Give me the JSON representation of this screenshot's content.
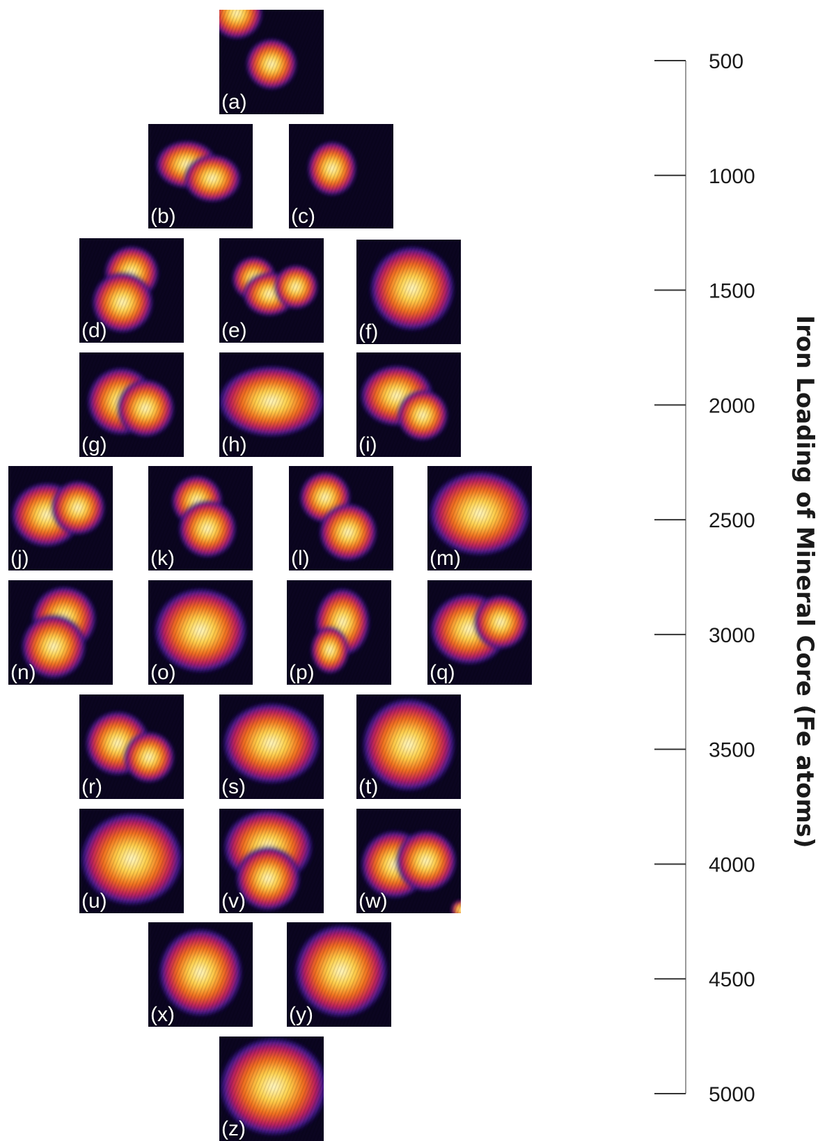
{
  "panels": [
    {
      "label": "(a)"
    },
    {
      "label": "(b)"
    },
    {
      "label": "(c)"
    },
    {
      "label": "(d)"
    },
    {
      "label": "(e)"
    },
    {
      "label": "(f)"
    },
    {
      "label": "(g)"
    },
    {
      "label": "(h)"
    },
    {
      "label": "(i)"
    },
    {
      "label": "(j)"
    },
    {
      "label": "(k)"
    },
    {
      "label": "(l)"
    },
    {
      "label": "(m)"
    },
    {
      "label": "(n)"
    },
    {
      "label": "(o)"
    },
    {
      "label": "(p)"
    },
    {
      "label": "(q)"
    },
    {
      "label": "(r)"
    },
    {
      "label": "(s)"
    },
    {
      "label": "(t)"
    },
    {
      "label": "(u)"
    },
    {
      "label": "(v)"
    },
    {
      "label": "(w)"
    },
    {
      "label": "(x)"
    },
    {
      "label": "(y)"
    },
    {
      "label": "(z)"
    }
  ],
  "scale": {
    "title": "Iron Loading of Mineral Core (Fe atoms)",
    "ticks": [
      "500",
      "1000",
      "1500",
      "2000",
      "2500",
      "3000",
      "3500",
      "4000",
      "4500",
      "5000"
    ],
    "range": [
      500,
      5000
    ]
  },
  "colors": {
    "background": "#0b0520",
    "halo": "#3a1a9c",
    "edge": "#c01c5a",
    "mid": "#f06a1c",
    "core": "#ffd24a",
    "hot": "#fff8c8"
  }
}
